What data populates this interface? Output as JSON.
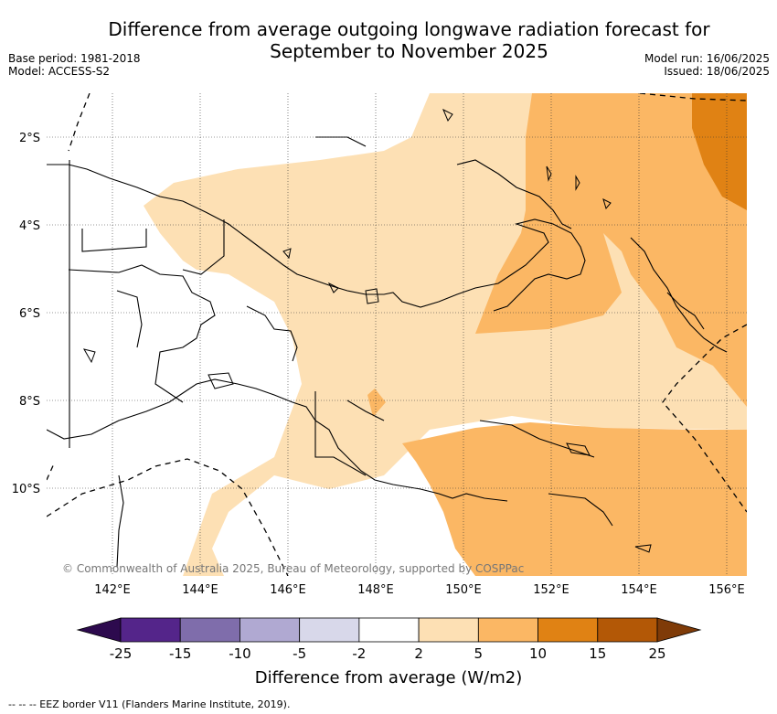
{
  "title_line1": "Difference from average outgoing longwave radiation forecast for",
  "title_line2": "September to November 2025",
  "meta_left": [
    "Base period: 1981-2018",
    "Model: ACCESS-S2"
  ],
  "meta_right": [
    "Model run: 16/06/2025",
    "Issued: 18/06/2025"
  ],
  "lat_labels": [
    "2°S",
    "4°S",
    "6°S",
    "8°S",
    "10°S"
  ],
  "lon_labels": [
    "142°E",
    "144°E",
    "146°E",
    "148°E",
    "150°E",
    "152°E",
    "154°E",
    "156°E"
  ],
  "copyright": "© Commonwealth of Australia 2025, Bureau of Meteorology, supported by COSPPac",
  "colorbar": {
    "title": "Difference from average (W/m2)",
    "ticks": [
      "-25",
      "-15",
      "-10",
      "-5",
      "-2",
      "2",
      "5",
      "10",
      "15",
      "25"
    ],
    "colors": [
      "#2d0a4e",
      "#54258a",
      "#7f6dab",
      "#b0a9d2",
      "#d8d8ea",
      "#ffffff",
      "#fde0b4",
      "#fbb764",
      "#e08214",
      "#b35806",
      "#7f3b08"
    ]
  },
  "eez_note": "-- -- -- EEZ border V11 (Flanders Marine Institute, 2019)."
}
